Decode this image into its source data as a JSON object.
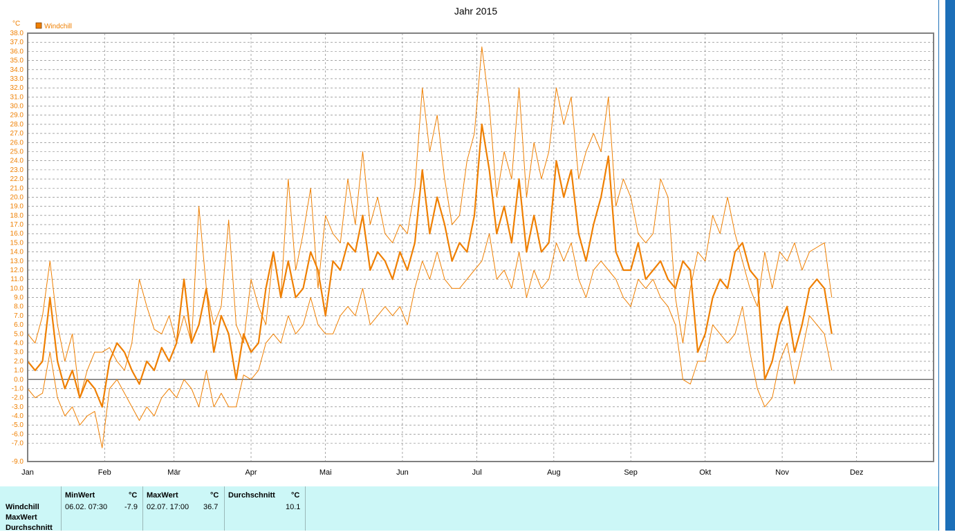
{
  "chart_data": {
    "type": "line",
    "title": "Jahr 2015",
    "ylabel": "°C",
    "legend": [
      {
        "name": "Windchill",
        "color": "#ef7f00"
      }
    ],
    "legend_position": "top-left",
    "ylim": [
      -9,
      38
    ],
    "yticks": [
      "38.0",
      "37.0",
      "36.0",
      "35.0",
      "34.0",
      "33.0",
      "32.0",
      "31.0",
      "30.0",
      "29.0",
      "28.0",
      "27.0",
      "26.0",
      "25.0",
      "24.0",
      "23.0",
      "22.0",
      "21.0",
      "20.0",
      "19.0",
      "18.0",
      "17.0",
      "16.0",
      "15.0",
      "14.0",
      "13.0",
      "12.0",
      "11.0",
      "10.0",
      "9.0",
      "8.0",
      "7.0",
      "6.0",
      "5.0",
      "4.0",
      "3.0",
      "2.0",
      "1.0",
      "0.0",
      "-1.0",
      "-2.0",
      "-3.0",
      "-4.0",
      "-5.0",
      "-6.0",
      "-7.0",
      "-9.0"
    ],
    "months": [
      "Jan",
      "Feb",
      "Mär",
      "Apr",
      "Mai",
      "Jun",
      "Jul",
      "Aug",
      "Sep",
      "Okt",
      "Nov",
      "Dez"
    ],
    "grid": true,
    "series_color": "#ef7f00",
    "series": [
      {
        "role": "max",
        "stride_days": 3,
        "values": [
          5.0,
          4.0,
          7.0,
          13.0,
          6.0,
          2.0,
          5.0,
          -2.0,
          1.0,
          3.0,
          3.0,
          3.5,
          2.0,
          1.0,
          4.0,
          11.0,
          8.0,
          5.5,
          5.0,
          7.0,
          4.0,
          7.0,
          4.0,
          19.0,
          10.0,
          6.0,
          8.0,
          17.5,
          6.0,
          4.0,
          11.0,
          8.0,
          6.0,
          14.0,
          9.0,
          22.0,
          12.0,
          16.0,
          21.0,
          10.0,
          18.0,
          16.0,
          15.0,
          22.0,
          17.0,
          25.0,
          17.0,
          20.0,
          16.0,
          15.0,
          17.0,
          16.0,
          21.0,
          32.0,
          25.0,
          29.0,
          22.0,
          17.0,
          18.0,
          24.0,
          27.0,
          36.5,
          30.0,
          20.0,
          25.0,
          22.0,
          32.0,
          20.0,
          26.0,
          22.0,
          25.0,
          32.0,
          28.0,
          31.0,
          22.0,
          25.0,
          27.0,
          25.0,
          31.0,
          19.0,
          22.0,
          20.0,
          16.0,
          15.0,
          16.0,
          22.0,
          20.0,
          9.0,
          4.0,
          10.0,
          14.0,
          13.0,
          18.0,
          16.0,
          20.0,
          16.0,
          13.0,
          10.0,
          8.0,
          14.0,
          10.0,
          14.0,
          13.0,
          15.0,
          12.0,
          14.0,
          14.5,
          15.0,
          9.0
        ]
      },
      {
        "role": "avg",
        "stride_days": 3,
        "values": [
          2.0,
          1.0,
          2.0,
          9.0,
          2.0,
          -1.0,
          1.0,
          -2.0,
          0.0,
          -1.0,
          -3.0,
          2.0,
          4.0,
          3.0,
          1.0,
          -0.5,
          2.0,
          1.0,
          3.5,
          2.0,
          4.0,
          11.0,
          4.0,
          6.0,
          10.0,
          3.0,
          7.0,
          5.0,
          0.0,
          5.0,
          3.0,
          4.0,
          10.0,
          14.0,
          9.0,
          13.0,
          9.0,
          10.0,
          14.0,
          12.0,
          7.0,
          13.0,
          12.0,
          15.0,
          14.0,
          18.0,
          12.0,
          14.0,
          13.0,
          11.0,
          14.0,
          12.0,
          15.0,
          23.0,
          16.0,
          20.0,
          17.0,
          13.0,
          15.0,
          14.0,
          18.0,
          28.0,
          23.0,
          16.0,
          19.0,
          15.0,
          22.0,
          14.0,
          18.0,
          14.0,
          15.0,
          24.0,
          20.0,
          23.0,
          16.0,
          13.0,
          17.0,
          20.0,
          24.5,
          14.0,
          12.0,
          12.0,
          15.0,
          11.0,
          12.0,
          13.0,
          11.0,
          10.0,
          13.0,
          12.0,
          3.0,
          5.0,
          9.0,
          11.0,
          10.0,
          14.0,
          15.0,
          12.0,
          11.0,
          0.0,
          2.0,
          6.0,
          8.0,
          3.0,
          6.0,
          10.0,
          11.0,
          10.0,
          5.0
        ]
      },
      {
        "role": "min",
        "stride_days": 3,
        "values": [
          -1.0,
          -2.0,
          -1.5,
          3.0,
          -2.0,
          -4.0,
          -3.0,
          -5.0,
          -4.0,
          -3.5,
          -7.5,
          -1.0,
          0.0,
          -1.5,
          -3.0,
          -4.5,
          -3.0,
          -4.0,
          -2.0,
          -1.0,
          -2.0,
          0.0,
          -1.0,
          -3.0,
          1.0,
          -3.0,
          -1.5,
          -3.0,
          -3.0,
          0.5,
          0.0,
          1.0,
          4.0,
          5.0,
          4.0,
          7.0,
          5.0,
          6.0,
          9.0,
          6.0,
          5.0,
          5.0,
          7.0,
          8.0,
          7.0,
          10.0,
          6.0,
          7.0,
          8.0,
          7.0,
          8.0,
          6.0,
          10.0,
          13.0,
          11.0,
          14.0,
          11.0,
          10.0,
          10.0,
          11.0,
          12.0,
          13.0,
          16.0,
          11.0,
          12.0,
          10.0,
          14.0,
          9.0,
          12.0,
          10.0,
          11.0,
          15.0,
          13.0,
          15.0,
          11.0,
          9.0,
          12.0,
          13.0,
          12.0,
          11.0,
          9.0,
          8.0,
          11.0,
          10.0,
          11.0,
          9.0,
          8.0,
          6.0,
          0.0,
          -0.5,
          2.0,
          2.0,
          6.0,
          5.0,
          4.0,
          5.0,
          8.0,
          3.0,
          -1.0,
          -3.0,
          -2.0,
          2.0,
          4.0,
          -0.5,
          3.0,
          7.0,
          6.0,
          5.0,
          1.0
        ]
      }
    ]
  },
  "legend": {
    "label": "Windchill"
  },
  "stats": {
    "row_labels": [
      "Windchill",
      "MaxWert",
      "Durchschnitt"
    ],
    "min": {
      "header": "MinWert",
      "unit": "°C",
      "datetime": "06.02.  07:30",
      "value": "-7.9"
    },
    "max": {
      "header": "MaxWert",
      "unit": "°C",
      "datetime": "02.07.  17:00",
      "value": "36.7"
    },
    "avg": {
      "header": "Durchschnitt",
      "unit": "°C",
      "value": "10.1"
    }
  }
}
